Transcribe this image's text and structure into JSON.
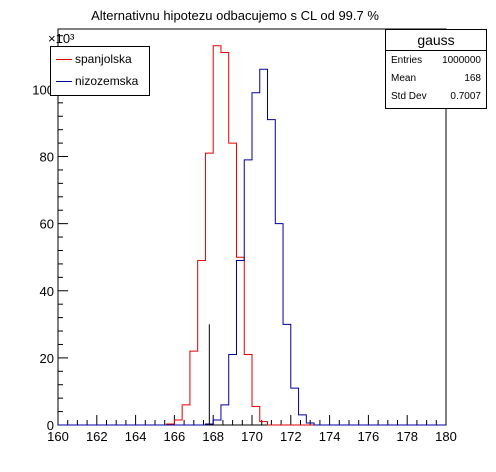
{
  "title": "Alternativnu hipotezu odbacujemo s CL od 99.7 %",
  "y_exponent": "×10³",
  "legend": [
    {
      "label": "spanjolska",
      "color": "#e00000"
    },
    {
      "label": "nizozemska",
      "color": "#0000a0"
    }
  ],
  "stats_box": {
    "name": "gauss",
    "rows": [
      {
        "key": "Entries",
        "value": "1000000"
      },
      {
        "key": "Mean",
        "value": "168"
      },
      {
        "key": "Std Dev",
        "value": "0.7007"
      }
    ]
  },
  "chart_data": {
    "type": "histogram",
    "title": "Alternativnu hipotezu odbacujemo s CL od 99.7 %",
    "xlim": [
      160,
      180
    ],
    "ylim": [
      0,
      118
    ],
    "y_unit_multiplier": "10^3",
    "bin_width": 0.4,
    "x_ticks": [
      160,
      162,
      164,
      166,
      168,
      170,
      172,
      174,
      176,
      178,
      180
    ],
    "y_ticks": [
      0,
      20,
      40,
      60,
      80,
      100
    ],
    "series": [
      {
        "name": "spanjolska",
        "color": "#e00000",
        "bin_edges": [
          165.6,
          166.0,
          166.4,
          166.8,
          167.2,
          167.6,
          168.0,
          168.4,
          168.8,
          169.2,
          169.6,
          170.0,
          170.4,
          170.8
        ],
        "values": [
          0.3,
          1.5,
          6,
          22,
          49,
          81,
          113,
          111,
          84,
          50,
          21,
          5.5,
          1
        ]
      },
      {
        "name": "nizozemska",
        "color": "#0000a0",
        "bin_edges": [
          167.6,
          168.0,
          168.4,
          168.8,
          169.2,
          169.6,
          170.0,
          170.4,
          170.8,
          171.2,
          171.6,
          172.0,
          172.4,
          172.8,
          173.2
        ],
        "values": [
          0.3,
          1.5,
          6,
          21,
          49,
          79,
          99,
          106,
          91,
          60,
          30,
          11,
          3,
          0.6
        ]
      }
    ],
    "markers": [
      {
        "x": 167.8,
        "y": 30,
        "color": "#000000"
      }
    ]
  }
}
